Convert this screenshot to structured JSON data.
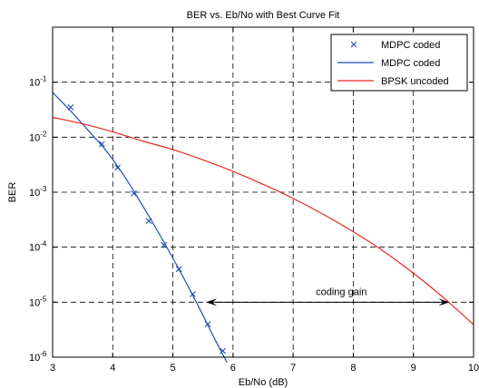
{
  "chart_data": {
    "type": "line",
    "title": "BER vs. Eb/No with Best Curve Fit",
    "xlabel": "Eb/No (dB)",
    "ylabel": "BER",
    "xlim": [
      3,
      10
    ],
    "ylim": [
      1e-06,
      1
    ],
    "yscale": "log",
    "grid": true,
    "legend_position": "top-right",
    "xticks": [
      "3",
      "4",
      "5",
      "6",
      "7",
      "8",
      "9",
      "10"
    ],
    "yticks": [
      {
        "base": "10",
        "exp": "-6",
        "value": 1e-06
      },
      {
        "base": "10",
        "exp": "-5",
        "value": 1e-05
      },
      {
        "base": "10",
        "exp": "-4",
        "value": 0.0001
      },
      {
        "base": "10",
        "exp": "-3",
        "value": 0.001
      },
      {
        "base": "10",
        "exp": "-2",
        "value": 0.01
      },
      {
        "base": "10",
        "exp": "-1",
        "value": 0.1
      }
    ],
    "series": [
      {
        "name": "MDPC coded",
        "style": "markers",
        "marker": "x",
        "color": "#1f4fb4",
        "x": [
          3.3,
          3.82,
          4.08,
          4.35,
          4.6,
          4.85,
          5.1,
          5.33,
          5.58,
          5.83
        ],
        "y": [
          0.035,
          0.0075,
          0.0028,
          0.00095,
          0.0003,
          0.00011,
          4e-05,
          1.4e-05,
          4e-06,
          1.3e-06
        ]
      },
      {
        "name": "MDPC coded",
        "style": "line",
        "color": "#1f4fb4",
        "x": [
          3.0,
          3.3,
          3.6,
          3.9,
          4.2,
          4.5,
          4.8,
          5.1,
          5.4,
          5.7,
          5.9
        ],
        "y": [
          0.065,
          0.03,
          0.013,
          0.0055,
          0.0019,
          0.00056,
          0.000155,
          4e-05,
          9.5e-06,
          2.1e-06,
          8e-07
        ]
      },
      {
        "name": "BPSK uncoded",
        "style": "line",
        "color": "#e8281e",
        "x": [
          3.0,
          3.5,
          4.0,
          4.5,
          5.0,
          5.5,
          6.0,
          6.5,
          7.0,
          7.5,
          8.0,
          8.5,
          9.0,
          9.5,
          10.0
        ],
        "y": [
          0.0229,
          0.0175,
          0.0125,
          0.0085,
          0.00595,
          0.00388,
          0.00239,
          0.00139,
          0.00077,
          0.000397,
          0.000191,
          8.49e-05,
          3.36e-05,
          1.21e-05,
          3.9e-06
        ]
      }
    ],
    "annotation": {
      "text": "coding gain",
      "arrow_from": [
        5.55,
        1e-05
      ],
      "arrow_to": [
        9.6,
        1e-05
      ]
    }
  }
}
